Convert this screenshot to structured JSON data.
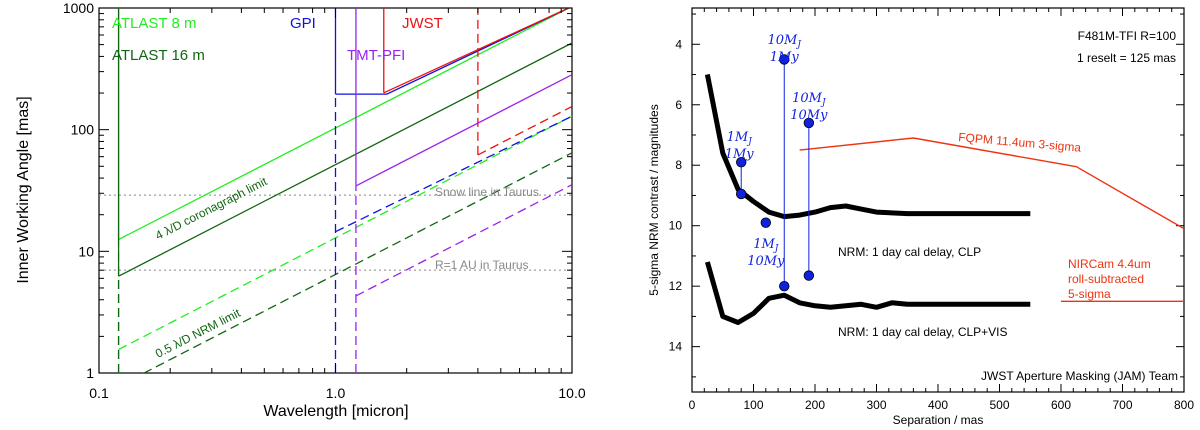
{
  "chart_data": [
    {
      "type": "line",
      "xlabel": "Wavelength [micron]",
      "ylabel": "Inner Working Angle [mas]",
      "xscale": "log",
      "yscale": "log",
      "xlim": [
        0.1,
        10.0
      ],
      "ylim": [
        1,
        1000
      ],
      "x_ticks": [
        "0.1",
        "1.0",
        "10.0"
      ],
      "y_ticks": [
        "1",
        "10",
        "100",
        "1000"
      ],
      "colors": {
        "atlast8": "#22ee22",
        "atlast16": "#116611",
        "gpi": "#1111dd",
        "jwst": "#ee1111",
        "tmt": "#9922ee",
        "ref": "#888888"
      },
      "series": [
        {
          "name": "ATLAST 8 m",
          "color": "atlast8",
          "coronagraph": [
            [
              0.121,
              12.5
            ],
            [
              10.0,
              1031
            ]
          ],
          "nrm": [
            [
              0.121,
              1.56
            ],
            [
              10.0,
              129
            ]
          ],
          "cutoff": 0.121
        },
        {
          "name": "ATLAST 16 m",
          "color": "atlast16",
          "coronagraph": [
            [
              0.121,
              6.25
            ],
            [
              10.0,
              516
            ]
          ],
          "nrm": [
            [
              0.121,
              0.78
            ],
            [
              10.0,
              64.5
            ]
          ],
          "cutoff": 0.121
        },
        {
          "name": "GPI",
          "color": "gpi",
          "cutoff": 1.0,
          "floor": 196,
          "coronagraph": [
            [
              1.0,
              196
            ],
            [
              1.65,
              196
            ],
            [
              10.0,
              1031
            ]
          ],
          "nrm": [
            [
              1.0,
              14.5
            ],
            [
              10.0,
              129
            ]
          ]
        },
        {
          "name": "JWST",
          "color": "jwst",
          "cutoff": 1.6,
          "coronagraph": [
            [
              1.6,
              201
            ],
            [
              10.0,
              1031
            ]
          ],
          "nrm": [
            [
              4.0,
              62
            ],
            [
              10.0,
              155
            ]
          ],
          "nrm_cutoff": 4.0
        },
        {
          "name": "TMT-PFI",
          "color": "tmt",
          "cutoff": 1.22,
          "coronagraph": [
            [
              1.22,
              34.5
            ],
            [
              10.0,
              283
            ]
          ],
          "nrm": [
            [
              1.22,
              4.3
            ],
            [
              10.0,
              35.3
            ]
          ]
        }
      ],
      "reference_lines": [
        {
          "label": "Snow line in Taurus",
          "y": 29
        },
        {
          "label": "R=1 AU in Taurus",
          "y": 7
        }
      ],
      "annotations": {
        "coronagraph": "4 λ/D coronagraph limit",
        "nrm": "0.5 λ/D NRM limit"
      }
    },
    {
      "type": "line",
      "xlabel": "Separation / mas",
      "ylabel": "5-sigma NRM contrast / magnitudes",
      "xlim": [
        0,
        800
      ],
      "ylim": [
        15.5,
        2.8
      ],
      "x_ticks": [
        0,
        100,
        200,
        300,
        400,
        500,
        600,
        700,
        800
      ],
      "y_ticks": [
        4,
        6,
        8,
        10,
        12,
        14
      ],
      "info": [
        "F481M-TFI  R=100",
        "1 reselt = 125 mas"
      ],
      "credit": "JWST Aperture Masking (JAM) Team",
      "series": [
        {
          "name": "NRM: 1 day cal delay, CLP",
          "color": "#000000",
          "x": [
            25,
            50,
            75,
            100,
            125,
            150,
            175,
            200,
            225,
            250,
            275,
            300,
            350,
            400,
            450,
            500,
            550
          ],
          "y": [
            5.0,
            7.6,
            8.8,
            9.2,
            9.55,
            9.7,
            9.65,
            9.55,
            9.4,
            9.35,
            9.45,
            9.55,
            9.6,
            9.6,
            9.6,
            9.6,
            9.6
          ]
        },
        {
          "name": "NRM: 1 day cal delay, CLP+VIS",
          "color": "#000000",
          "x": [
            25,
            50,
            75,
            100,
            125,
            150,
            175,
            200,
            225,
            250,
            275,
            300,
            325,
            350,
            400,
            450,
            500,
            550
          ],
          "y": [
            11.2,
            13.0,
            13.2,
            12.9,
            12.4,
            12.3,
            12.55,
            12.65,
            12.7,
            12.65,
            12.6,
            12.7,
            12.55,
            12.6,
            12.6,
            12.6,
            12.6,
            12.6
          ]
        },
        {
          "name": "FQPM 11.4um 3-sigma",
          "color": "#ee3311",
          "x": [
            175,
            360,
            625,
            800
          ],
          "y": [
            7.5,
            7.1,
            8.05,
            10.1
          ]
        },
        {
          "name": "NIRCam 4.4um roll-subtracted 5-sigma",
          "color": "#ee3311",
          "x": [
            600,
            800
          ],
          "y": [
            12.5,
            12.5
          ]
        }
      ],
      "planet_points": [
        {
          "label_top": "1M",
          "label_sub": "J",
          "label_bottom": "1My",
          "points": [
            {
              "x": 80,
              "y": 7.9
            },
            {
              "x": 80,
              "y": 8.95
            }
          ]
        },
        {
          "label_top": "1M",
          "label_sub": "J",
          "label_bottom": "10My",
          "points": [
            {
              "x": 120,
              "y": 9.9
            }
          ]
        },
        {
          "label_top": "10M",
          "label_sub": "J",
          "label_bottom": "1My",
          "points": [
            {
              "x": 150,
              "y": 4.5
            },
            {
              "x": 150,
              "y": 12.0
            }
          ]
        },
        {
          "label_top": "10M",
          "label_sub": "J",
          "label_bottom": "10My",
          "points": [
            {
              "x": 190,
              "y": 6.6
            },
            {
              "x": 190,
              "y": 11.65
            }
          ]
        }
      ],
      "point_color": "#1122dd",
      "text_labels": {
        "clp": "NRM: 1 day cal delay, CLP",
        "clpvis": "NRM: 1 day cal delay, CLP+VIS",
        "fqpm": "FQPM 11.4um 3-sigma",
        "nircam": [
          "NIRCam 4.4um",
          "roll-subtracted",
          "5-sigma"
        ]
      }
    }
  ]
}
